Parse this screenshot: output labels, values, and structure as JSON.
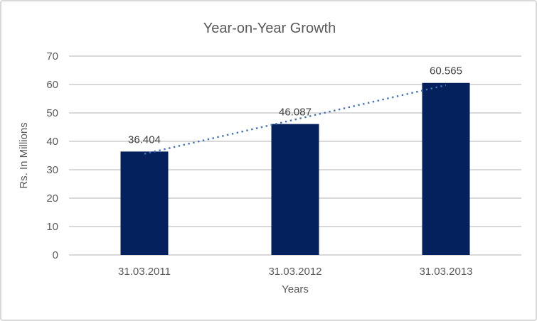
{
  "chart_data": {
    "type": "bar",
    "title": "Year-on-Year Growth",
    "xlabel": "Years",
    "ylabel": "Rs. In Millions",
    "categories": [
      "31.03.2011",
      "31.03.2012",
      "31.03.2013"
    ],
    "values": [
      36.404,
      46.087,
      60.565
    ],
    "data_labels": [
      "36.404",
      "46.087",
      "60.565"
    ],
    "ylim": [
      0,
      70
    ],
    "ytick_interval": 10,
    "yticks": [
      0,
      10,
      20,
      30,
      40,
      50,
      60,
      70
    ],
    "grid": true,
    "legend": "none",
    "trendline": {
      "type": "linear",
      "style": "dotted"
    },
    "colors": {
      "bar": "#04215e",
      "trendline": "#4273b6",
      "gridline": "#d9d9d9",
      "axis_text": "#595959",
      "data_label": "#404040",
      "title_text": "#595959",
      "border": "#d9d9d9",
      "background": "#ffffff"
    }
  }
}
